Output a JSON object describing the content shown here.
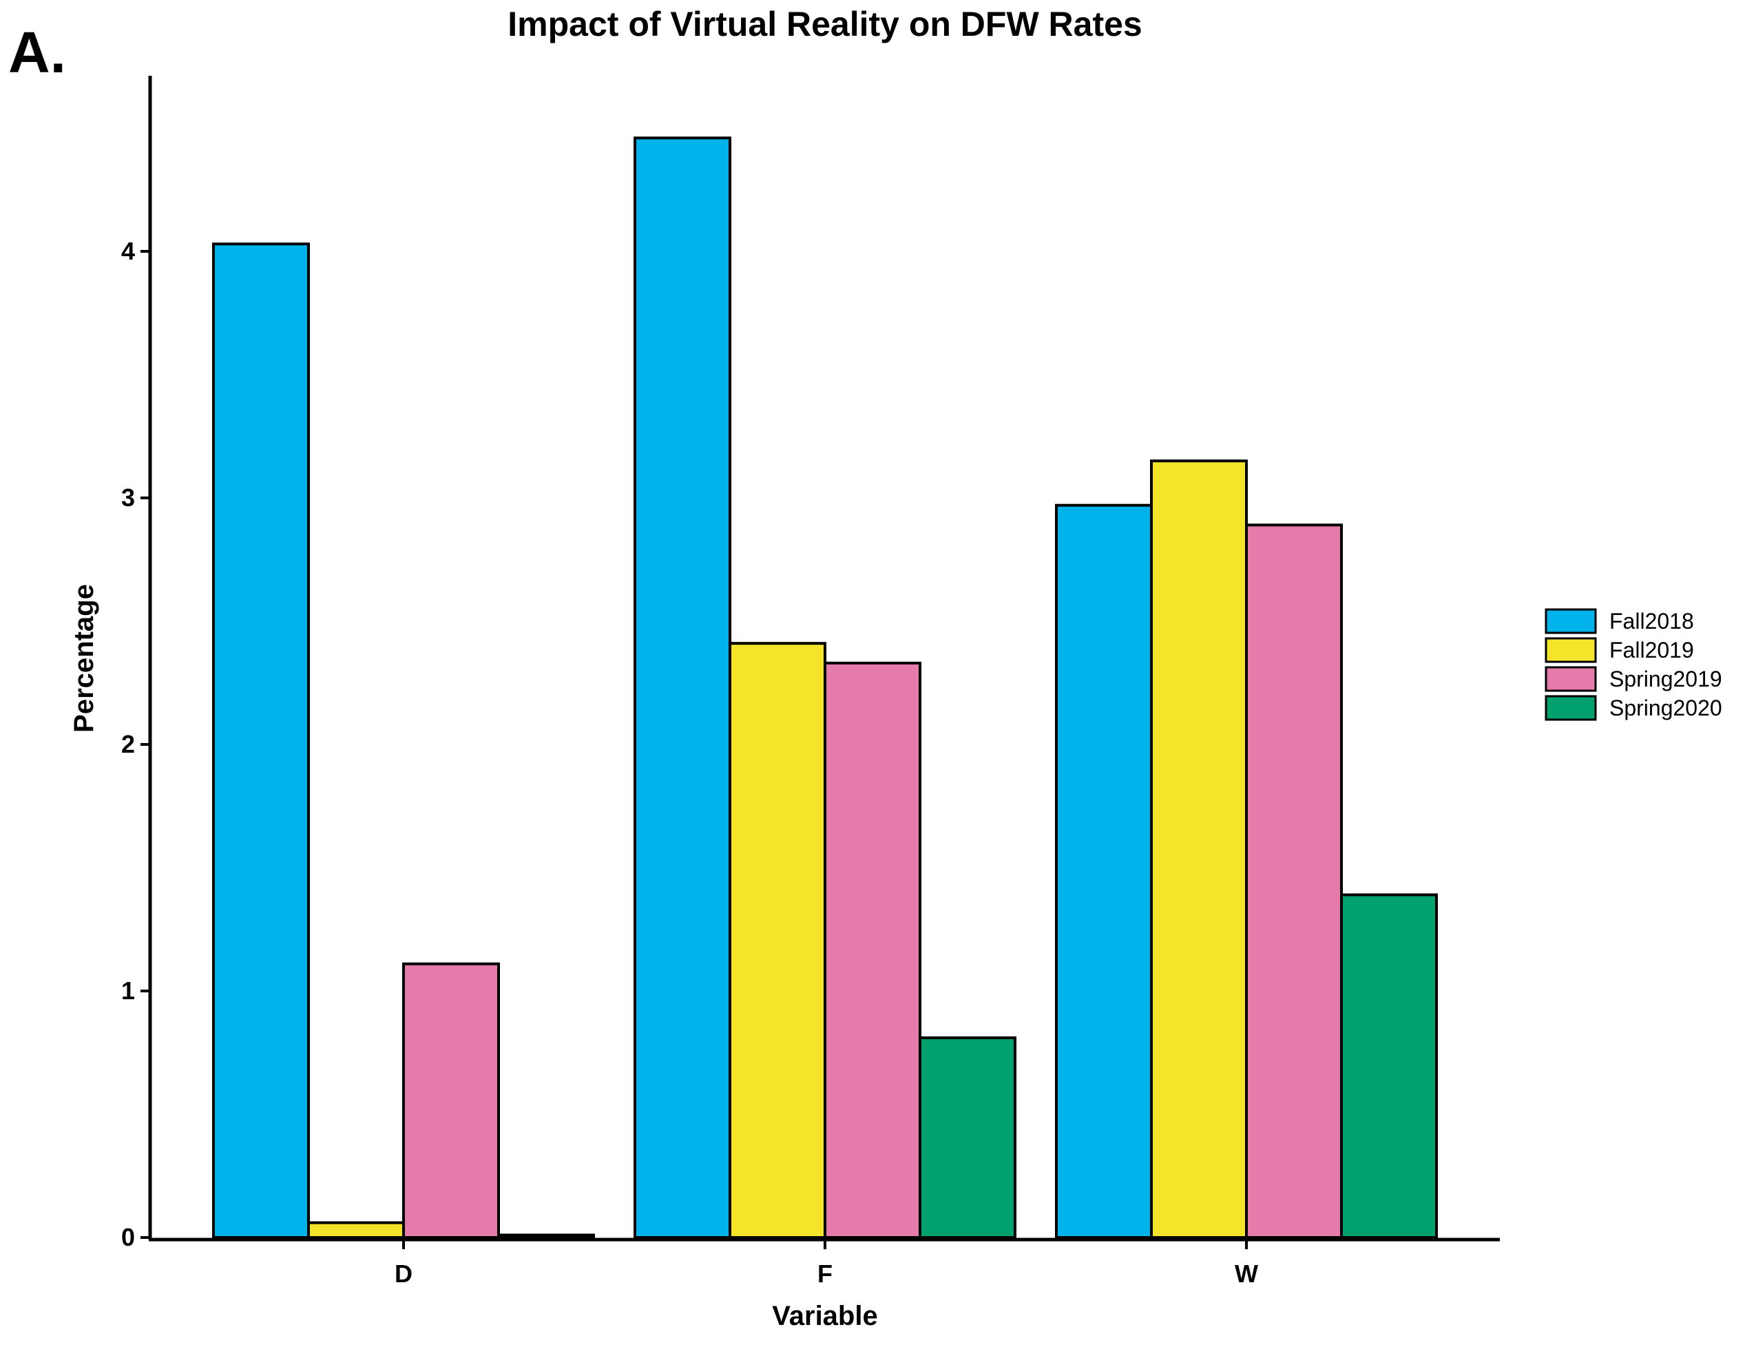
{
  "panel_label": "A.",
  "colors": {
    "Fall2018": "#00B3EB",
    "Fall2019": "#F5E52A",
    "Spring2019": "#E57BAB",
    "Spring2020": "#00A06F"
  },
  "chart_data": {
    "type": "bar",
    "title": "Impact of Virtual Reality on DFW Rates",
    "xlabel": "Variable",
    "ylabel": "Percentage",
    "categories": [
      "D",
      "F",
      "W"
    ],
    "ylim": [
      0,
      4.5
    ],
    "yticks": [
      "0",
      "1",
      "2",
      "3",
      "4"
    ],
    "legend_position": "right",
    "series": [
      {
        "name": "Fall2018",
        "values": [
          4.03,
          4.46,
          2.97
        ]
      },
      {
        "name": "Fall2019",
        "values": [
          0.06,
          2.41,
          3.15
        ]
      },
      {
        "name": "Spring2019",
        "values": [
          1.11,
          2.33,
          2.89
        ]
      },
      {
        "name": "Spring2020",
        "values": [
          0.01,
          0.81,
          1.39
        ]
      }
    ]
  }
}
